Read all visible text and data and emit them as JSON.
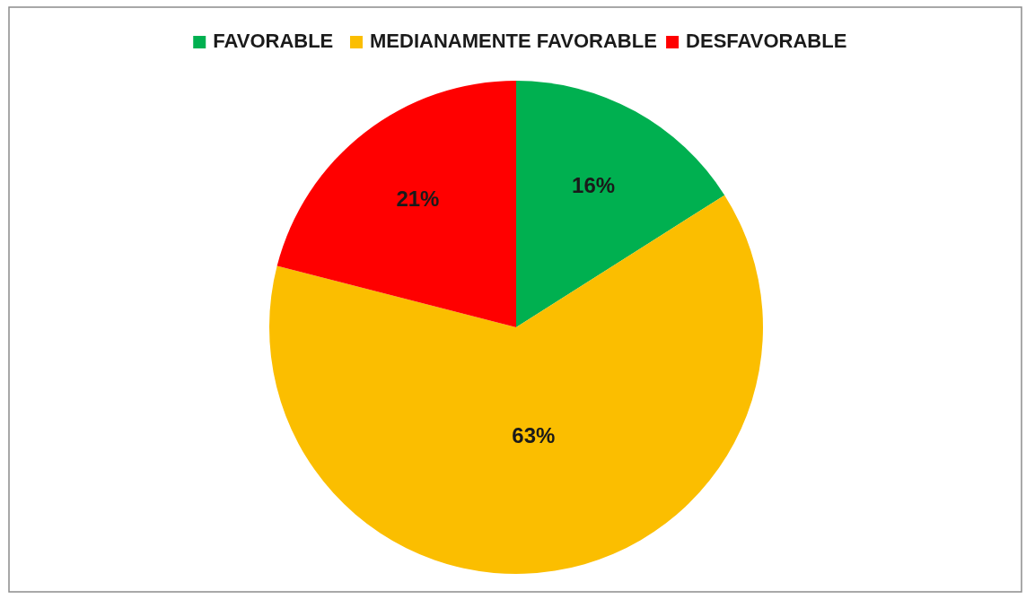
{
  "chart_data": {
    "type": "pie",
    "categories": [
      "FAVORABLE",
      "MEDIANAMENTE FAVORABLE",
      "DESFAVORABLE"
    ],
    "values": [
      16,
      63,
      21
    ],
    "colors": [
      "#00b050",
      "#fbbe00",
      "#ff0000"
    ],
    "value_labels": [
      "16%",
      "63%",
      "21%"
    ],
    "legend": "top"
  }
}
